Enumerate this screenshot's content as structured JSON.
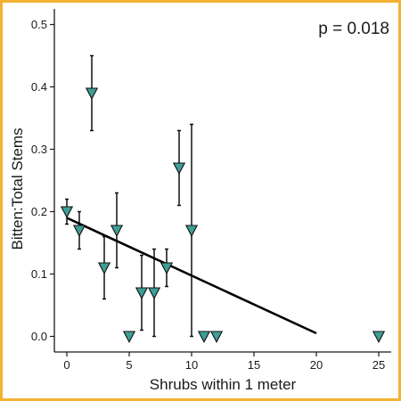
{
  "chart_data": {
    "type": "scatter",
    "title": "",
    "xlabel": "Shrubs within 1 meter",
    "ylabel": "Bitten:Total Stems",
    "annotation": "p = 0.018",
    "xlim": [
      -1,
      26
    ],
    "ylim": [
      -0.025,
      0.525
    ],
    "x_ticks": [
      0,
      5,
      10,
      15,
      20,
      25
    ],
    "y_ticks": [
      0.0,
      0.1,
      0.2,
      0.3,
      0.4,
      0.5
    ],
    "y_tick_labels": [
      "0.0",
      "0.1",
      "0.2",
      "0.3",
      "0.4",
      "0.5"
    ],
    "grid": false,
    "marker": "triangle-down",
    "marker_color": "#3f9e95",
    "points": [
      {
        "x": 0,
        "y": 0.2,
        "lo": 0.18,
        "hi": 0.22
      },
      {
        "x": 1,
        "y": 0.17,
        "lo": 0.14,
        "hi": 0.2
      },
      {
        "x": 2,
        "y": 0.39,
        "lo": 0.33,
        "hi": 0.45
      },
      {
        "x": 3,
        "y": 0.11,
        "lo": 0.06,
        "hi": 0.16
      },
      {
        "x": 4,
        "y": 0.17,
        "lo": 0.11,
        "hi": 0.23
      },
      {
        "x": 5,
        "y": 0.0
      },
      {
        "x": 6,
        "y": 0.07,
        "lo": 0.01,
        "hi": 0.13
      },
      {
        "x": 7,
        "y": 0.07,
        "lo": 0.0,
        "hi": 0.14
      },
      {
        "x": 8,
        "y": 0.11,
        "lo": 0.08,
        "hi": 0.14
      },
      {
        "x": 9,
        "y": 0.27,
        "lo": 0.21,
        "hi": 0.33
      },
      {
        "x": 10,
        "y": 0.17,
        "lo": 0.0,
        "hi": 0.34
      },
      {
        "x": 11,
        "y": 0.0
      },
      {
        "x": 12,
        "y": 0.0
      },
      {
        "x": 25,
        "y": 0.0
      }
    ],
    "trend_line": {
      "x": [
        0,
        20
      ],
      "y": [
        0.19,
        0.005
      ],
      "color": "#000000"
    }
  }
}
